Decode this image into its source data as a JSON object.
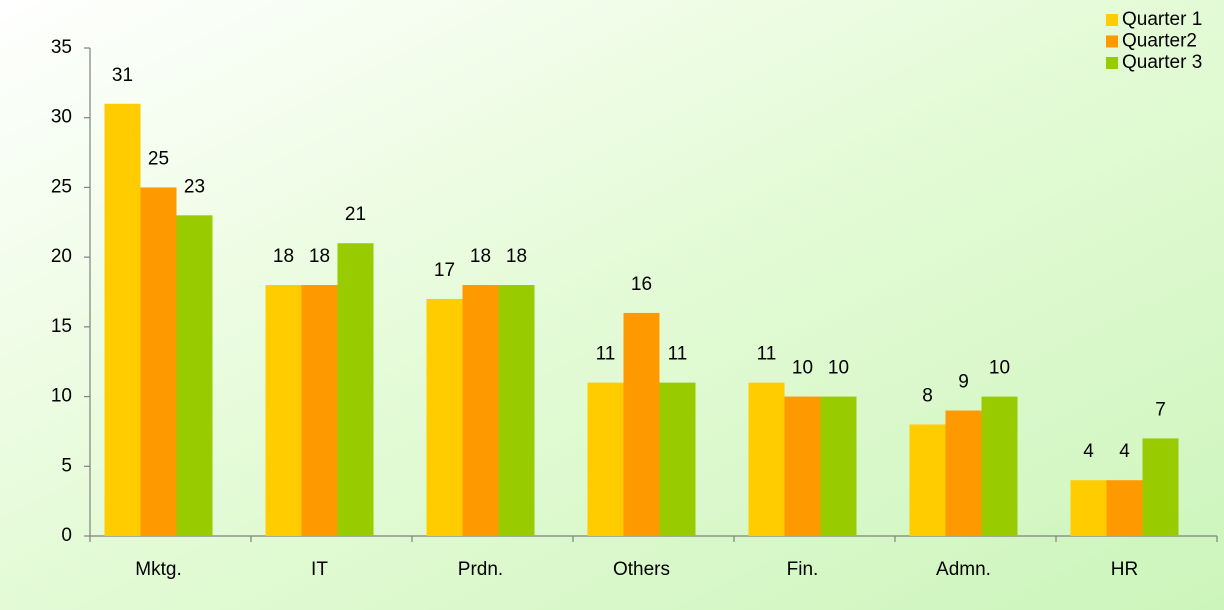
{
  "chart_data": {
    "type": "bar",
    "categories": [
      "Mktg.",
      "IT",
      "Prdn.",
      "Others",
      "Fin.",
      "Admn.",
      "HR"
    ],
    "series": [
      {
        "name": "Quarter 1",
        "color": "#ffcc00",
        "values": [
          31,
          18,
          17,
          11,
          11,
          8,
          4
        ]
      },
      {
        "name": "Quarter2",
        "color": "#ff9900",
        "values": [
          25,
          18,
          18,
          16,
          10,
          9,
          4
        ]
      },
      {
        "name": "Quarter 3",
        "color": "#99cc00",
        "values": [
          23,
          21,
          18,
          11,
          10,
          10,
          7
        ]
      }
    ],
    "ylim": [
      0,
      35
    ],
    "yticks": [
      0,
      5,
      10,
      15,
      20,
      25,
      30,
      35
    ],
    "legend": "top-right"
  }
}
